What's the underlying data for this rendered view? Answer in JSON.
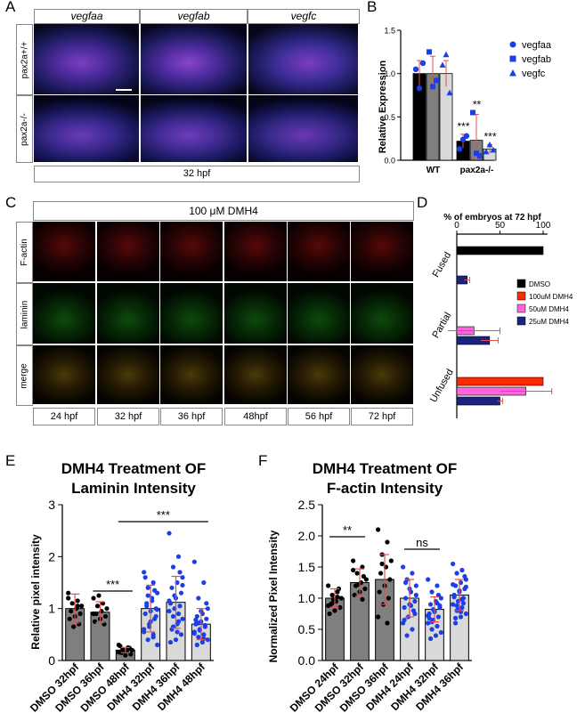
{
  "panel_labels": [
    "A",
    "B",
    "C",
    "D",
    "E",
    "F"
  ],
  "panelA": {
    "columns": [
      "vegfaa",
      "vegfab",
      "vegfc"
    ],
    "rows": [
      "pax2a+/+",
      "pax2a-/-"
    ],
    "footer": "32 hpf"
  },
  "panelC": {
    "header": "100 μM DMH4",
    "rows": [
      "F-actin",
      "laminin",
      "merge"
    ],
    "timepoints": [
      "24 hpf",
      "32 hpf",
      "36 hpf",
      "48hpf",
      "56 hpf",
      "72 hpf"
    ]
  },
  "colors": {
    "blue_marker": "#1a3fe6",
    "dmso": "#000000",
    "dmh4_100": "#ff2a00",
    "dmh4_50": "#ff66dd",
    "dmh4_25": "#1a237e",
    "bar_dark": "#7f7f7f",
    "bar_mid": "#a6a6a6",
    "bar_light": "#d9d9d9",
    "error_red": "#e05050"
  },
  "chart_data": [
    {
      "id": "B",
      "type": "bar",
      "ylabel": "Relative Expression",
      "ylim": [
        0,
        1.5
      ],
      "yticks": [
        0.0,
        0.5,
        1.0,
        1.5
      ],
      "categories": [
        "WT",
        "pax2a-/-"
      ],
      "series": [
        {
          "name": "vegfaa",
          "marker": "circle",
          "values": [
            1.0,
            0.22
          ],
          "err": [
            0.15,
            0.08
          ],
          "points": [
            [
              1.05,
              0.83,
              1.12
            ],
            [
              0.13,
              0.24,
              0.28
            ]
          ]
        },
        {
          "name": "vegfab",
          "marker": "square",
          "values": [
            1.0,
            0.23
          ],
          "err": [
            0.2,
            0.3
          ],
          "points": [
            [
              1.25,
              0.85,
              0.92
            ],
            [
              0.55,
              0.08,
              0.05
            ]
          ]
        },
        {
          "name": "vegfc",
          "marker": "triangle",
          "values": [
            1.0,
            0.13
          ],
          "err": [
            0.15,
            0.05
          ],
          "points": [
            [
              1.1,
              1.22,
              0.78
            ],
            [
              0.1,
              0.18,
              0.12
            ]
          ]
        }
      ],
      "significance": [
        "***",
        "**",
        "***"
      ],
      "legend_position": "top-right"
    },
    {
      "id": "D",
      "type": "bar",
      "orientation": "horizontal",
      "title": "% of embryos at 72 hpf",
      "xlim": [
        0,
        100
      ],
      "xticks": [
        0,
        50,
        100
      ],
      "categories": [
        "Fused",
        "Partial",
        "Unfused"
      ],
      "series": [
        {
          "name": "DMSO",
          "values": [
            100,
            0,
            0
          ],
          "err": [
            0,
            0,
            0
          ]
        },
        {
          "name": "100uM DMH4",
          "values": [
            0,
            0,
            100
          ],
          "err": [
            0,
            0,
            0
          ]
        },
        {
          "name": "50uM DMH4",
          "values": [
            0,
            20,
            80
          ],
          "err": [
            0,
            30,
            30
          ]
        },
        {
          "name": "25uM DMH4",
          "values": [
            12,
            38,
            50
          ],
          "err": [
            3,
            10,
            3
          ]
        }
      ],
      "legend_position": "right"
    },
    {
      "id": "E",
      "type": "bar",
      "title": "DMH4 Treatment OF Laminin Intensity",
      "ylabel": "Relative pixel intensity",
      "ylim": [
        0,
        3
      ],
      "yticks": [
        0,
        1,
        2,
        3
      ],
      "categories": [
        "DMSO 32hpf",
        "DMSO 36hpf",
        "DMSO 48hpf",
        "DMH4 32hpf",
        "DMH4 36hpf",
        "DMH4 48hpf"
      ],
      "values": [
        1.0,
        0.93,
        0.2,
        1.0,
        1.12,
        0.7
      ],
      "err": [
        0.28,
        0.2,
        0.05,
        0.45,
        0.5,
        0.3
      ],
      "points": [
        [
          1.2,
          1.15,
          1.1,
          1.05,
          1.0,
          0.95,
          0.9,
          0.85,
          0.8,
          0.7,
          0.65,
          1.3,
          1.05
        ],
        [
          1.2,
          1.1,
          1.05,
          1.0,
          0.95,
          0.9,
          0.85,
          0.8,
          0.75,
          0.7,
          1.25,
          0.9
        ],
        [
          0.3,
          0.25,
          0.22,
          0.2,
          0.18,
          0.15,
          0.12,
          0.1,
          0.28,
          0.24,
          0.18,
          0.16
        ],
        [
          1.7,
          1.5,
          1.4,
          1.3,
          1.2,
          1.1,
          1.0,
          0.95,
          0.9,
          0.8,
          0.7,
          0.6,
          0.5,
          0.4,
          0.3,
          1.15,
          1.05,
          0.85,
          0.75,
          1.6,
          1.35,
          0.65,
          0.55,
          0.45,
          1.25,
          0.98
        ],
        [
          2.45,
          2.0,
          1.8,
          1.6,
          1.5,
          1.4,
          1.3,
          1.2,
          1.1,
          1.05,
          1.0,
          0.95,
          0.9,
          0.85,
          0.8,
          0.7,
          0.6,
          0.5,
          0.4,
          0.35,
          1.7,
          1.25,
          1.15,
          0.75,
          0.65,
          1.45,
          0.55
        ],
        [
          1.9,
          1.5,
          1.2,
          1.0,
          0.9,
          0.85,
          0.8,
          0.75,
          0.7,
          0.65,
          0.6,
          0.55,
          0.5,
          0.45,
          0.4,
          0.35,
          0.3,
          1.1,
          0.95,
          0.78,
          0.68,
          0.58,
          0.52,
          0.42,
          0.72
        ]
      ],
      "point_colors": [
        "dmso",
        "dmso",
        "dmso",
        "blue",
        "blue",
        "blue"
      ],
      "significance": [
        {
          "from": 1,
          "to": 2,
          "label": "***"
        },
        {
          "from": 2,
          "to": 5,
          "label": "***"
        }
      ]
    },
    {
      "id": "F",
      "type": "bar",
      "title": "DMH4 Treatment OF F-actin Intensity",
      "ylabel": "Normalized Pixel Intensity",
      "ylim": [
        0,
        2.5
      ],
      "yticks": [
        0.0,
        0.5,
        1.0,
        1.5,
        2.0,
        2.5
      ],
      "categories": [
        "DMSO 24hpf",
        "DMSO 32hpf",
        "DMSO 36hpf",
        "DMH4 24hpf",
        "DMH4 32hpf",
        "DMH4 36hpf"
      ],
      "values": [
        1.0,
        1.25,
        1.3,
        1.0,
        0.82,
        1.05
      ],
      "err": [
        0.15,
        0.22,
        0.4,
        0.3,
        0.2,
        0.25
      ],
      "points": [
        [
          1.2,
          1.1,
          1.05,
          1.0,
          0.95,
          0.9,
          0.85,
          0.8,
          0.75,
          1.15,
          0.98,
          0.88,
          1.02,
          0.92
        ],
        [
          1.6,
          1.5,
          1.4,
          1.3,
          1.25,
          1.2,
          1.15,
          1.1,
          1.05,
          1.35,
          1.22,
          1.45,
          0.98
        ],
        [
          2.1,
          1.9,
          1.7,
          1.6,
          1.5,
          1.4,
          1.3,
          1.2,
          1.1,
          1.0,
          0.9,
          0.7,
          0.6,
          1.55
        ],
        [
          1.5,
          1.4,
          1.3,
          1.2,
          1.1,
          1.0,
          0.95,
          0.9,
          0.85,
          0.8,
          0.7,
          0.6,
          0.5,
          0.4,
          1.05,
          0.88,
          1.25,
          0.75,
          1.15,
          0.65
        ],
        [
          1.3,
          1.2,
          1.1,
          1.0,
          0.95,
          0.9,
          0.85,
          0.8,
          0.75,
          0.7,
          0.65,
          0.6,
          0.55,
          0.5,
          0.45,
          0.4,
          0.35,
          0.88,
          0.78,
          0.68,
          1.05,
          0.82,
          0.72,
          0.92,
          0.62
        ],
        [
          1.55,
          1.45,
          1.4,
          1.3,
          1.25,
          1.2,
          1.15,
          1.1,
          1.05,
          1.0,
          0.95,
          0.9,
          0.85,
          0.8,
          0.75,
          0.7,
          0.6,
          1.35,
          1.12,
          1.02,
          0.92,
          0.82,
          1.22,
          0.98,
          0.88,
          1.18,
          0.78,
          0.68
        ]
      ],
      "point_colors": [
        "dmso",
        "dmso",
        "dmso",
        "blue",
        "blue",
        "blue"
      ],
      "significance": [
        {
          "from": 0,
          "to": 1,
          "label": "**"
        },
        {
          "from": 3,
          "to": 4,
          "label": "ns"
        }
      ]
    }
  ]
}
